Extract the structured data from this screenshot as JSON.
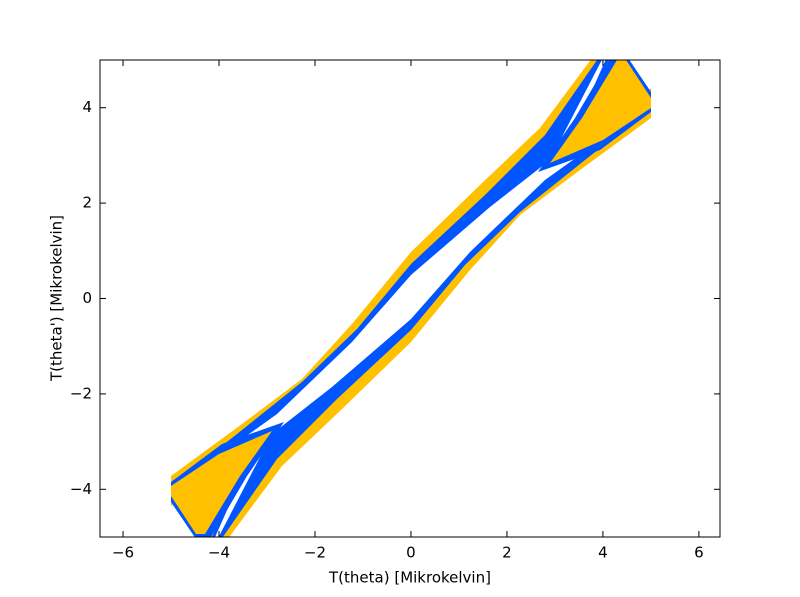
{
  "chart_data": {
    "type": "contour",
    "xlabel": "T(theta) [Mikrokelvin]",
    "ylabel": "T(theta') [Mikrokelvin]",
    "xlim": [
      -6.48,
      6.44
    ],
    "ylim": [
      -5,
      5
    ],
    "xticks": [
      {
        "value": -6,
        "label": "−6"
      },
      {
        "value": -4,
        "label": "−4"
      },
      {
        "value": -2,
        "label": "−2"
      },
      0,
      2,
      4,
      6
    ],
    "yticks": [
      {
        "value": -4,
        "label": "−4"
      },
      {
        "value": -2,
        "label": "−2"
      },
      0,
      2,
      4
    ],
    "fill_colors": [
      "#ffc000",
      "#0055ff"
    ]
  }
}
